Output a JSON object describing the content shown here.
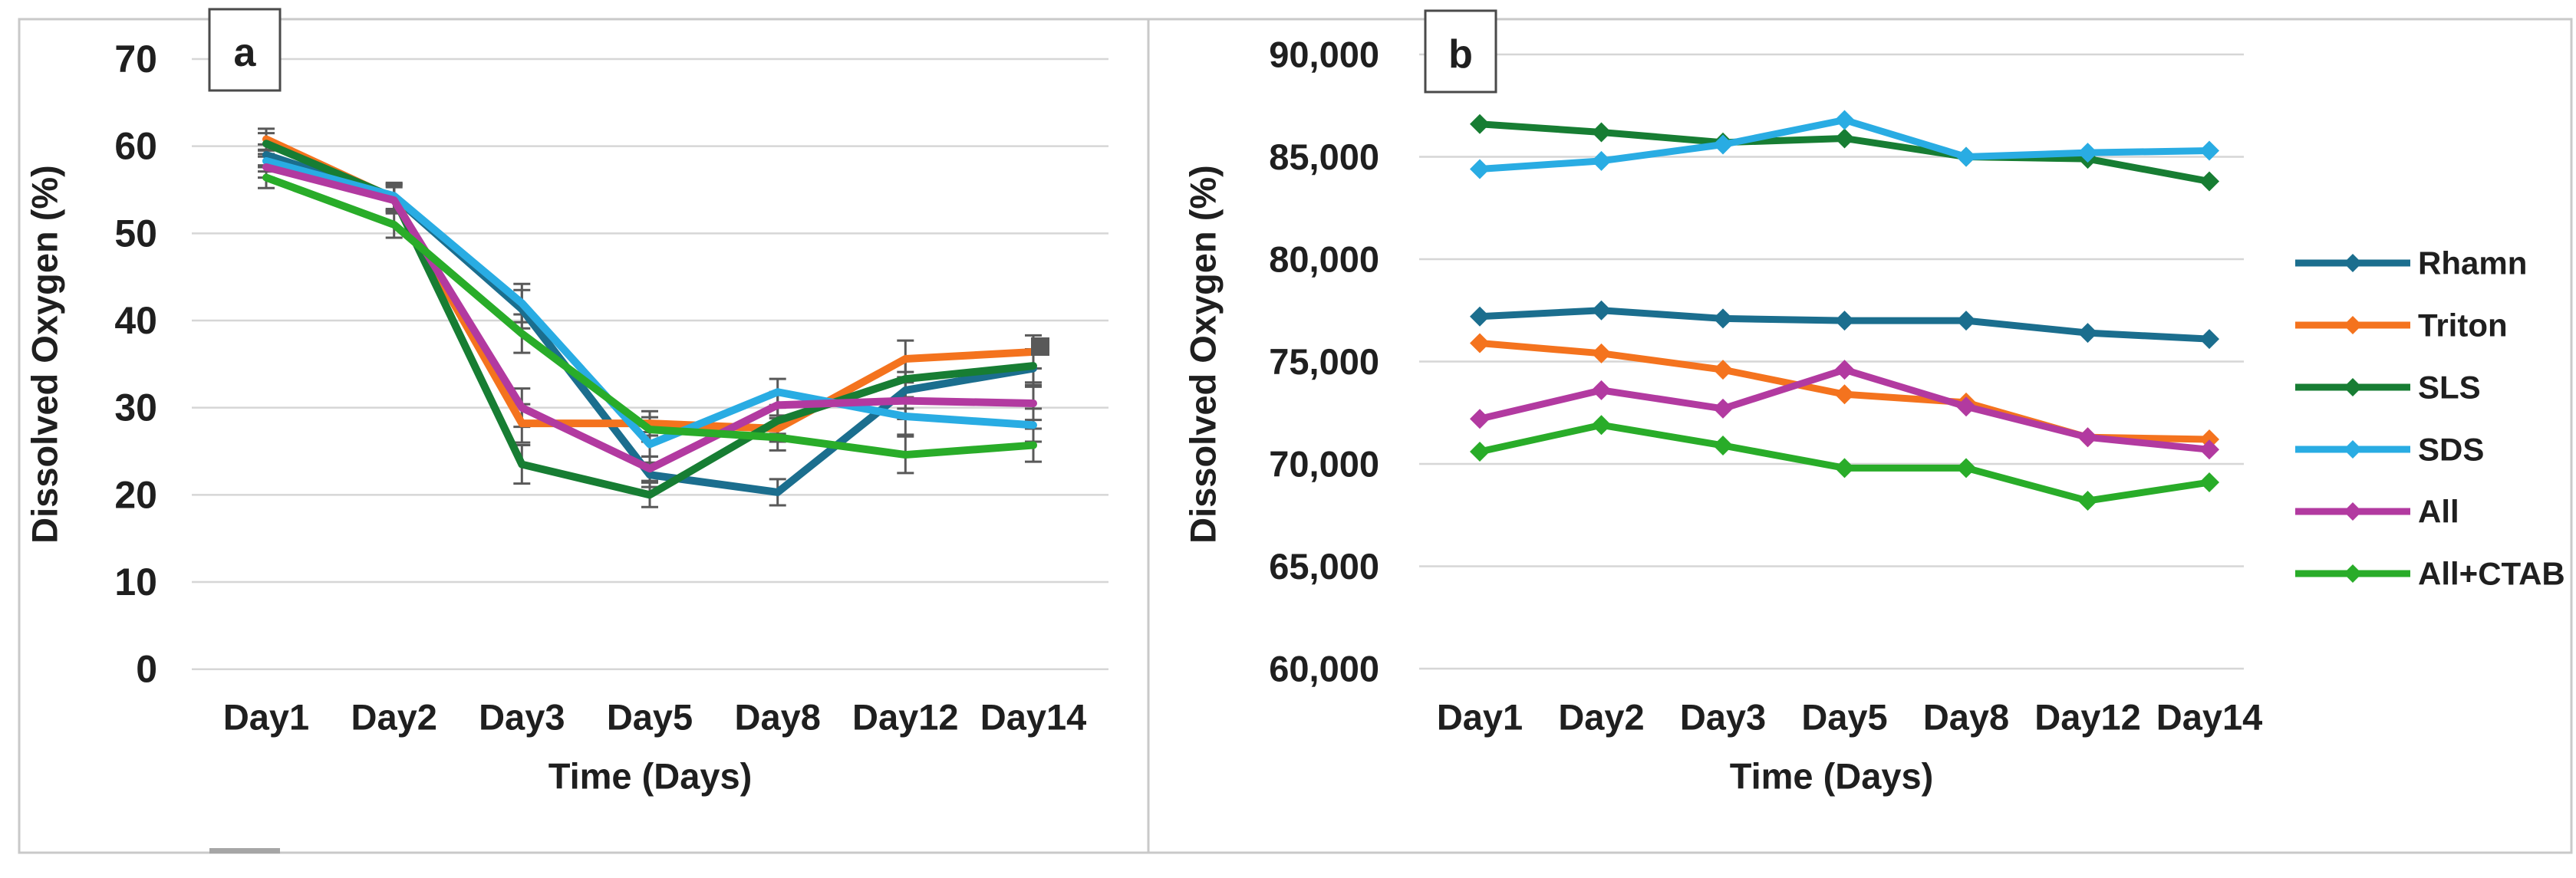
{
  "figure": {
    "panel_a_letter": "a",
    "panel_b_letter": "b"
  },
  "style": {
    "frame_color": "#c9c9c9",
    "grid_color": "#d6d6d6",
    "text_color": "#1f1f1f",
    "error_bar_color": "#595959",
    "artifact_color": "#a6a6a6",
    "panel_letter_box_border": "#4a4a4a"
  },
  "chart_data": [
    {
      "type": "line",
      "panel": "a",
      "title": "",
      "xlabel": "Time (Days)",
      "ylabel": "Dissolved Oxygen (%)",
      "categories": [
        "Day1",
        "Day2",
        "Day3",
        "Day5",
        "Day8",
        "Day12",
        "Day14"
      ],
      "ylim": [
        0,
        70
      ],
      "ytick_labels": [
        "70",
        "60",
        "50",
        "40",
        "30",
        "20",
        "10",
        "0"
      ],
      "grid": true,
      "markers": false,
      "legend": false,
      "error_bars_per_day": [
        1.2,
        1.5,
        2.2,
        1.4,
        1.5,
        2.1,
        1.9
      ],
      "series": [
        {
          "name": "Rhamn",
          "color": "#1B6E8E",
          "values": [
            59.0,
            54.2,
            41.3,
            22.3,
            20.3,
            32.0,
            34.5
          ]
        },
        {
          "name": "Triton",
          "color": "#F4731E",
          "values": [
            60.8,
            54.0,
            28.2,
            28.2,
            27.6,
            35.6,
            36.4
          ]
        },
        {
          "name": "SLS",
          "color": "#177D33",
          "values": [
            60.3,
            54.1,
            23.5,
            20.0,
            28.5,
            33.3,
            34.8
          ]
        },
        {
          "name": "SDS",
          "color": "#29ACE3",
          "values": [
            58.3,
            54.3,
            42.0,
            25.8,
            31.8,
            29.0,
            28.0
          ]
        },
        {
          "name": "All",
          "color": "#B23AA0",
          "values": [
            57.6,
            53.8,
            30.0,
            23.0,
            30.3,
            30.8,
            30.5
          ]
        },
        {
          "name": "All+CTAB",
          "color": "#29AC29",
          "values": [
            56.4,
            51.0,
            38.5,
            27.5,
            26.6,
            24.6,
            25.7
          ]
        }
      ]
    },
    {
      "type": "line",
      "panel": "b",
      "title": "",
      "xlabel": "Time (Days)",
      "ylabel": "Dissolved Oxygen (%)",
      "categories": [
        "Day1",
        "Day2",
        "Day3",
        "Day5",
        "Day8",
        "Day12",
        "Day14"
      ],
      "ylim": [
        60000,
        90000
      ],
      "ytick_labels": [
        "90,000",
        "85,000",
        "80,000",
        "75,000",
        "70,000",
        "65,000",
        "60,000"
      ],
      "grid": true,
      "markers": true,
      "legend": true,
      "legend_position": "right",
      "series": [
        {
          "name": "Rhamn",
          "color": "#1B6E8E",
          "values": [
            77200,
            77500,
            77100,
            77000,
            77000,
            76400,
            76100
          ]
        },
        {
          "name": "Triton",
          "color": "#F4731E",
          "values": [
            75900,
            75400,
            74600,
            73400,
            73000,
            71300,
            71200
          ]
        },
        {
          "name": "SLS",
          "color": "#177D33",
          "values": [
            86600,
            86200,
            85700,
            85900,
            85000,
            84900,
            83800
          ]
        },
        {
          "name": "SDS",
          "color": "#29ACE3",
          "values": [
            84400,
            84800,
            85600,
            86800,
            85000,
            85200,
            85300
          ]
        },
        {
          "name": "All",
          "color": "#B23AA0",
          "values": [
            72200,
            73600,
            72700,
            74600,
            72800,
            71300,
            70700
          ]
        },
        {
          "name": "All+CTAB",
          "color": "#29AC29",
          "values": [
            70600,
            71900,
            70900,
            69800,
            69800,
            68200,
            69100
          ]
        }
      ]
    }
  ]
}
